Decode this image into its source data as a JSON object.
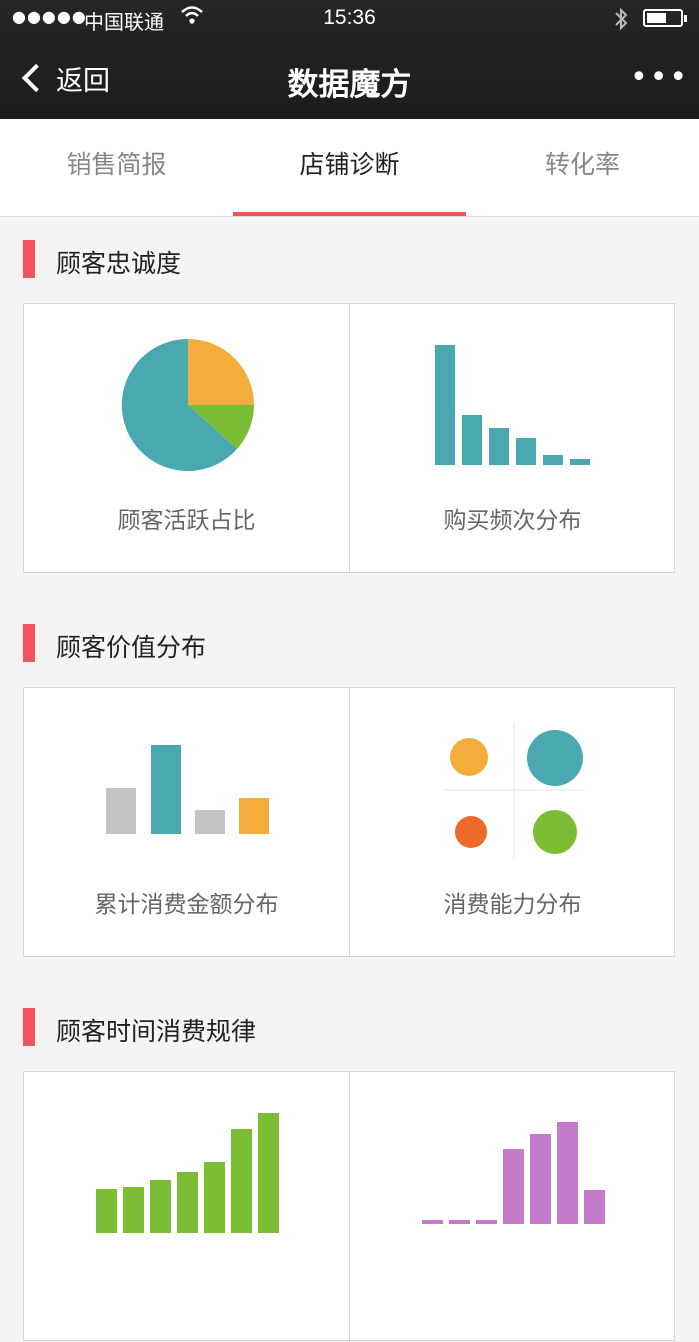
{
  "status_bar": {
    "signal": "●●●●●",
    "carrier": "中国联通",
    "wifi_icon": "wifi-icon",
    "time": "15:36",
    "bluetooth_icon": "bluetooth-icon",
    "battery_level": 0.6
  },
  "nav": {
    "back_label": "返回",
    "title": "数据魔方",
    "more_label": "•••"
  },
  "tabs": [
    {
      "label": "销售简报",
      "active": false
    },
    {
      "label": "店铺诊断",
      "active": true
    },
    {
      "label": "转化率",
      "active": false
    }
  ],
  "sections": [
    {
      "title": "顾客忠诚度",
      "cards": [
        {
          "caption": "顾客活跃占比",
          "icon": "pie-chart-icon"
        },
        {
          "caption": "购买频次分布",
          "icon": "bar-chart-icon"
        }
      ]
    },
    {
      "title": "顾客价值分布",
      "cards": [
        {
          "caption": "累计消费金额分布",
          "icon": "bar-chart-icon"
        },
        {
          "caption": "消费能力分布",
          "icon": "bubble-quadrant-icon"
        }
      ]
    },
    {
      "title": "顾客时间消费规律",
      "cards": [
        {
          "caption": "",
          "icon": "bar-chart-icon"
        },
        {
          "caption": "",
          "icon": "bar-chart-icon"
        }
      ]
    }
  ],
  "colors": {
    "accent": "#f2545b",
    "teal": "#4aa8b0",
    "orange": "#f2ad3a",
    "green": "#7bbd35",
    "gray": "#c4c4c4",
    "red_orange": "#ee6a2a",
    "purple": "#c47bc9"
  }
}
